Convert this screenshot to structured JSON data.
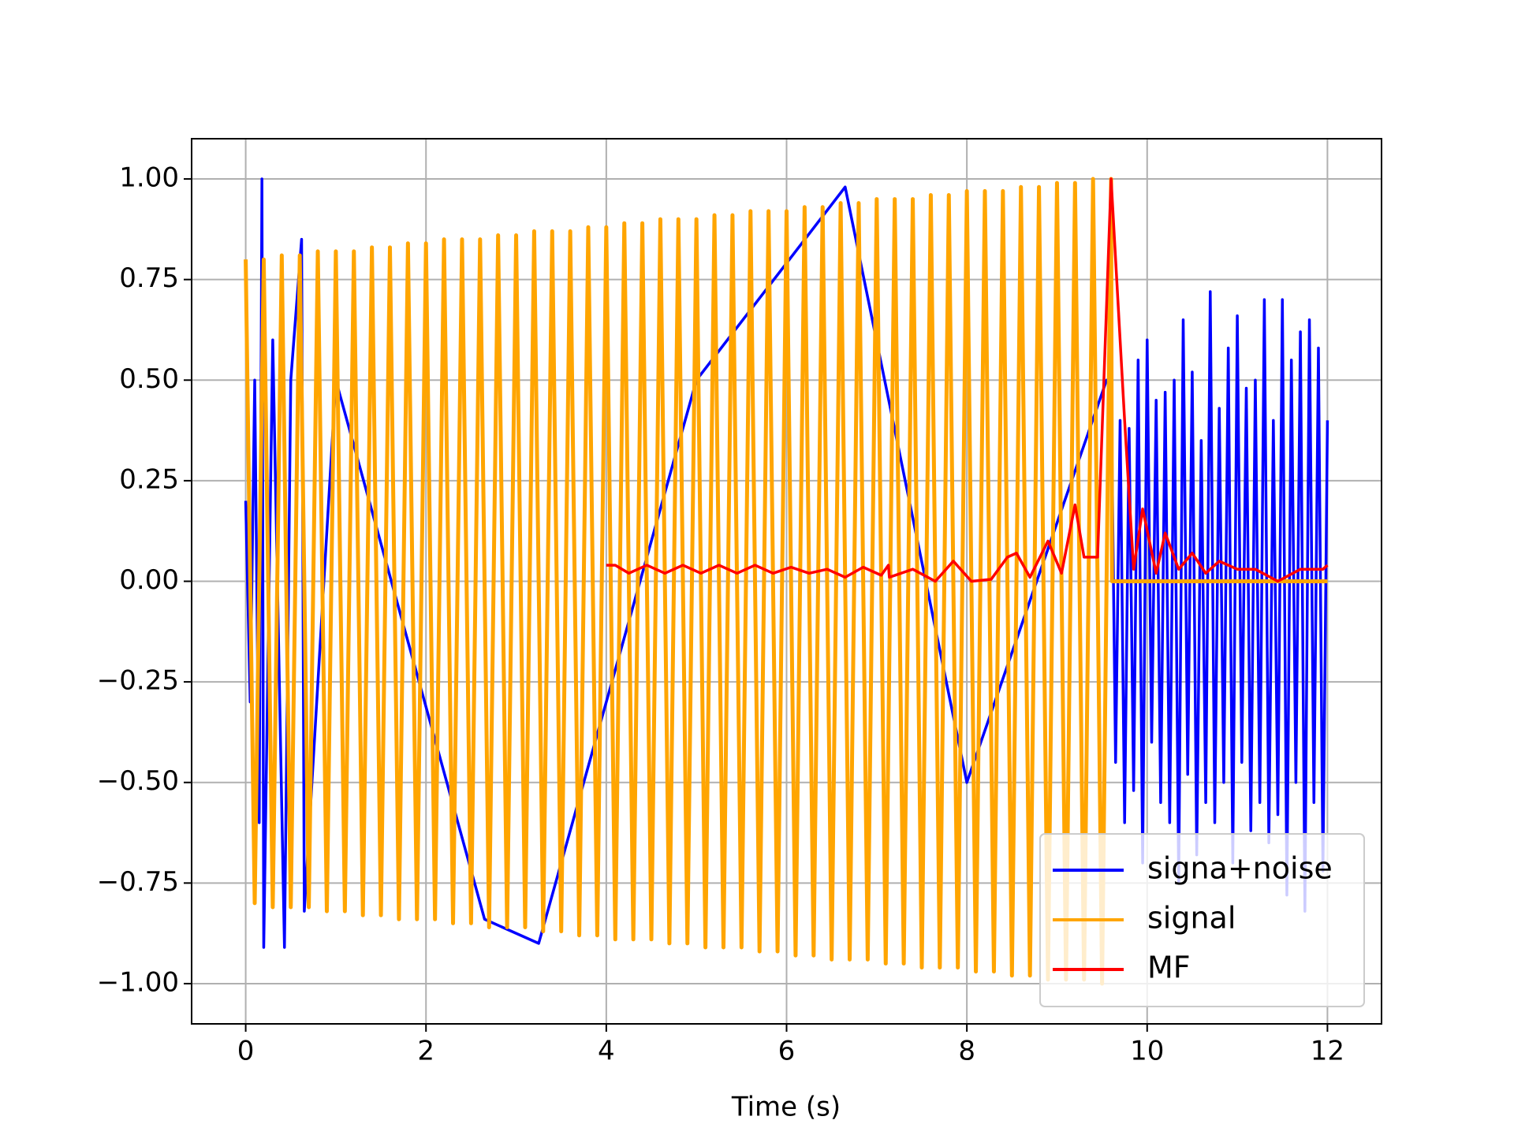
{
  "chart_data": {
    "type": "line",
    "xlabel": "Time (s)",
    "xlim": [
      -0.6,
      12.6
    ],
    "ylim": [
      -1.1,
      1.1
    ],
    "xticks": [
      0,
      2,
      4,
      6,
      8,
      10,
      12
    ],
    "yticks": [
      {
        "value": -1,
        "label": "−1.00"
      },
      {
        "value": -0.75,
        "label": "−0.75"
      },
      {
        "value": -0.5,
        "label": "−0.50"
      },
      {
        "value": -0.25,
        "label": "−0.25"
      },
      {
        "value": 0,
        "label": "0.00"
      },
      {
        "value": 0.25,
        "label": "0.25"
      },
      {
        "value": 0.5,
        "label": "0.50"
      },
      {
        "value": 0.75,
        "label": "0.75"
      },
      {
        "value": 1,
        "label": "1.00"
      }
    ],
    "grid": true,
    "legend": "lower right",
    "series": [
      {
        "name": "signa+noise",
        "color": "#0000ff",
        "x": [
          0,
          0.05,
          0.1,
          0.15,
          0.18,
          0.2,
          0.3,
          0.43,
          0.5,
          0.62,
          0.65,
          1.0,
          2.65,
          3.25,
          5,
          6.65,
          8,
          9.55,
          9.6,
          9.65,
          9.7,
          9.75,
          9.8,
          9.85,
          9.9,
          9.95,
          10.0,
          10.05,
          10.1,
          10.15,
          10.2,
          10.25,
          10.3,
          10.35,
          10.4,
          10.45,
          10.5,
          10.55,
          10.6,
          10.65,
          10.7,
          10.75,
          10.8,
          10.85,
          10.9,
          10.95,
          11.0,
          11.05,
          11.1,
          11.15,
          11.2,
          11.25,
          11.3,
          11.35,
          11.4,
          11.45,
          11.5,
          11.55,
          11.6,
          11.65,
          11.7,
          11.75,
          11.8,
          11.85,
          11.9,
          11.95,
          12.0
        ],
        "values": [
          0.2,
          -0.3,
          0.5,
          -0.6,
          1.0,
          -0.91,
          0.6,
          -0.91,
          0.5,
          0.85,
          -0.82,
          0.5,
          -0.84,
          -0.9,
          0.5,
          0.98,
          -0.5,
          0.5,
          0.5,
          -0.45,
          0.4,
          -0.6,
          0.38,
          -0.52,
          0.55,
          -0.7,
          0.6,
          -0.4,
          0.45,
          -0.55,
          0.47,
          -0.6,
          0.5,
          -0.75,
          0.65,
          -0.48,
          0.52,
          -0.68,
          0.35,
          -0.55,
          0.72,
          -0.6,
          0.43,
          -0.5,
          0.58,
          -0.7,
          0.66,
          -0.45,
          0.48,
          -0.62,
          0.5,
          -0.55,
          0.7,
          -0.65,
          0.4,
          -0.58,
          0.7,
          -0.78,
          0.55,
          -0.5,
          0.62,
          -0.82,
          0.65,
          -0.55,
          0.58,
          -0.72,
          0.4
        ]
      },
      {
        "name": "signal",
        "color": "#ffa500",
        "x": [
          0,
          0.1,
          0.2,
          0.3,
          0.4,
          0.5,
          0.6,
          0.7,
          0.8,
          0.9,
          1.0,
          1.1,
          1.2,
          1.3,
          1.4,
          1.5,
          1.6,
          1.7,
          1.8,
          1.9,
          2.0,
          2.1,
          2.2,
          2.3,
          2.4,
          2.5,
          2.6,
          2.7,
          2.8,
          2.9,
          3.0,
          3.1,
          3.2,
          3.3,
          3.4,
          3.5,
          3.6,
          3.7,
          3.8,
          3.9,
          4.0,
          4.1,
          4.2,
          4.3,
          4.4,
          4.5,
          4.6,
          4.7,
          4.8,
          4.9,
          5.0,
          5.1,
          5.2,
          5.3,
          5.4,
          5.5,
          5.6,
          5.7,
          5.8,
          5.9,
          6.0,
          6.1,
          6.2,
          6.3,
          6.4,
          6.5,
          6.6,
          6.7,
          6.8,
          6.9,
          7.0,
          7.1,
          7.2,
          7.3,
          7.4,
          7.5,
          7.6,
          7.7,
          7.8,
          7.9,
          8.0,
          8.1,
          8.2,
          8.3,
          8.4,
          8.5,
          8.6,
          8.7,
          8.8,
          8.9,
          9.0,
          9.1,
          9.2,
          9.3,
          9.4,
          9.5,
          9.6,
          9.61,
          12
        ],
        "values": [
          0.8,
          -0.8,
          0.8,
          -0.81,
          0.81,
          -0.81,
          0.81,
          -0.81,
          0.82,
          -0.82,
          0.82,
          -0.82,
          0.82,
          -0.83,
          0.83,
          -0.83,
          0.83,
          -0.84,
          0.84,
          -0.84,
          0.84,
          -0.84,
          0.85,
          -0.85,
          0.85,
          -0.85,
          0.85,
          -0.86,
          0.86,
          -0.86,
          0.86,
          -0.86,
          0.87,
          -0.87,
          0.87,
          -0.87,
          0.87,
          -0.88,
          0.88,
          -0.88,
          0.88,
          -0.89,
          0.89,
          -0.89,
          0.89,
          -0.89,
          0.9,
          -0.9,
          0.9,
          -0.9,
          0.9,
          -0.91,
          0.91,
          -0.91,
          0.91,
          -0.91,
          0.92,
          -0.92,
          0.92,
          -0.92,
          0.92,
          -0.93,
          0.93,
          -0.93,
          0.93,
          -0.94,
          0.94,
          -0.94,
          0.94,
          -0.94,
          0.95,
          -0.95,
          0.95,
          -0.95,
          0.95,
          -0.96,
          0.96,
          -0.96,
          0.96,
          -0.96,
          0.97,
          -0.97,
          0.97,
          -0.97,
          0.97,
          -0.98,
          0.98,
          -0.98,
          0.98,
          -0.99,
          0.99,
          -0.99,
          0.99,
          -0.99,
          1,
          -1,
          1,
          0,
          0
        ]
      },
      {
        "name": "MF",
        "color": "#ff0000",
        "x": [
          4.0,
          4.1,
          4.25,
          4.45,
          4.65,
          4.85,
          5.05,
          5.25,
          5.45,
          5.65,
          5.85,
          6.05,
          6.25,
          6.45,
          6.65,
          6.85,
          7.05,
          7.13,
          7.14,
          7.4,
          7.65,
          7.85,
          8.05,
          8.27,
          8.45,
          8.55,
          8.7,
          8.9,
          9.05,
          9.2,
          9.3,
          9.45,
          9.6,
          9.75,
          9.85,
          9.95,
          10.1,
          10.2,
          10.35,
          10.5,
          10.65,
          10.8,
          11.0,
          11.2,
          11.45,
          11.7,
          11.95,
          12.0
        ],
        "values": [
          0.04,
          0.04,
          0.02,
          0.04,
          0.02,
          0.04,
          0.02,
          0.04,
          0.02,
          0.04,
          0.02,
          0.035,
          0.02,
          0.03,
          0.01,
          0.035,
          0.015,
          0.04,
          0.01,
          0.03,
          0.0,
          0.05,
          0.0,
          0.005,
          0.06,
          0.07,
          0.01,
          0.1,
          0.02,
          0.19,
          0.06,
          0.06,
          1.0,
          0.4,
          0.03,
          0.18,
          0.02,
          0.12,
          0.03,
          0.07,
          0.02,
          0.05,
          0.03,
          0.03,
          0.0,
          0.03,
          0.03,
          0.04
        ]
      }
    ]
  }
}
